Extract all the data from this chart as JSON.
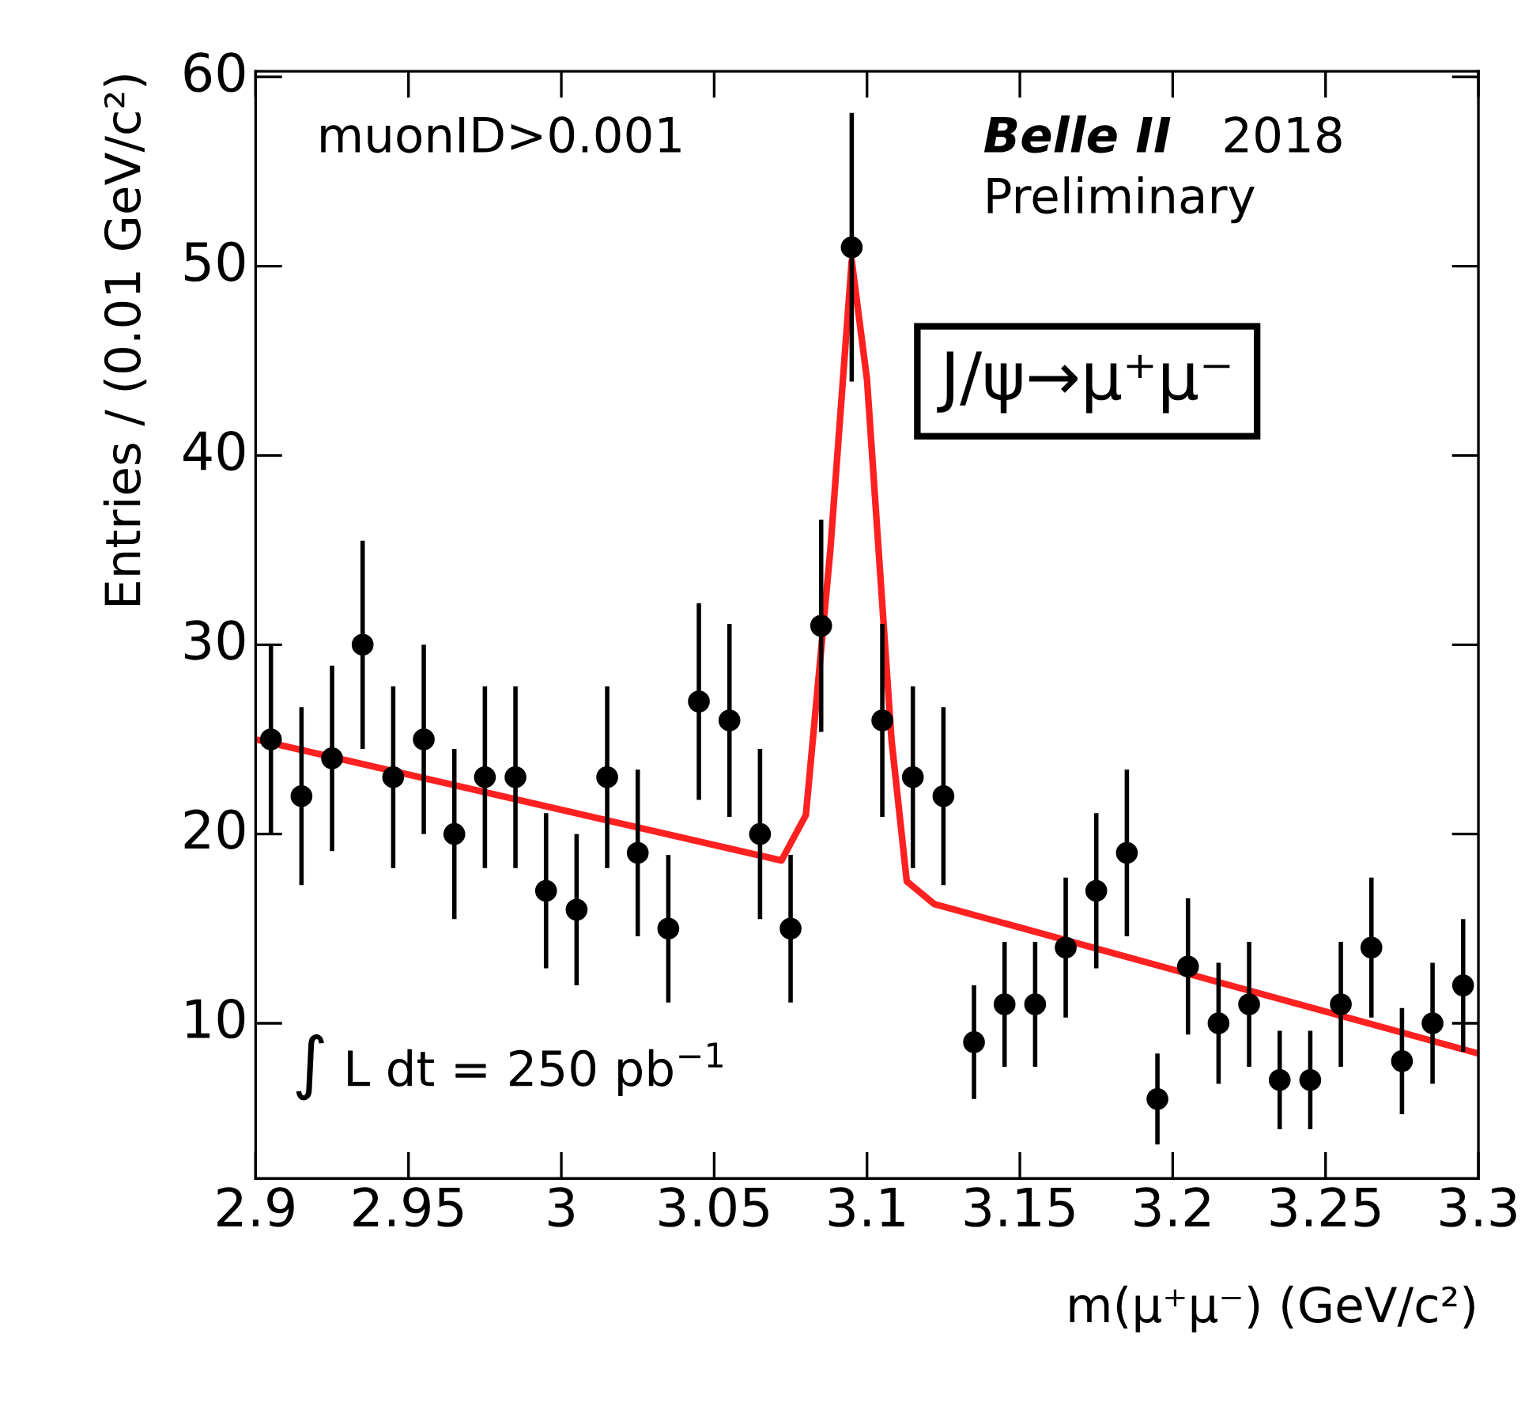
{
  "chart_data": {
    "type": "scatter",
    "xlabel": "m(μ⁺μ⁻) (GeV/c²)",
    "ylabel": "Entries / (0.01 GeV/c²)",
    "xlim": [
      2.9,
      3.3
    ],
    "ylim": [
      1.8,
      60.3
    ],
    "xticks": [
      2.9,
      2.95,
      3,
      3.05,
      3.1,
      3.15,
      3.2,
      3.25,
      3.3
    ],
    "yticks": [
      10,
      20,
      30,
      40,
      50,
      60
    ],
    "grid": false,
    "marker": "circle",
    "series": [
      {
        "color": "#000000",
        "x": [
          2.905,
          2.915,
          2.925,
          2.935,
          2.945,
          2.955,
          2.965,
          2.975,
          2.985,
          2.995,
          3.005,
          3.015,
          3.025,
          3.035,
          3.045,
          3.055,
          3.065,
          3.075,
          3.085,
          3.095,
          3.105,
          3.115,
          3.125,
          3.135,
          3.145,
          3.155,
          3.165,
          3.175,
          3.185,
          3.195,
          3.205,
          3.215,
          3.225,
          3.235,
          3.245,
          3.255,
          3.265,
          3.275,
          3.285,
          3.295
        ],
        "values": [
          25,
          22,
          24,
          30,
          23,
          25,
          20,
          23,
          23,
          17,
          16,
          23,
          19,
          15,
          27,
          26,
          20,
          15,
          31,
          51,
          26,
          23,
          22,
          9,
          11,
          11,
          14,
          17,
          19,
          6,
          13,
          10,
          11,
          7,
          7,
          11,
          14,
          8,
          10,
          12
        ],
        "errors": [
          5,
          4.7,
          4.9,
          5.5,
          4.8,
          5,
          4.5,
          4.8,
          4.8,
          4.1,
          4,
          4.8,
          4.4,
          3.9,
          5.2,
          5.1,
          4.5,
          3.9,
          5.6,
          7.1,
          5.1,
          4.8,
          4.7,
          3,
          3.3,
          3.3,
          3.7,
          4.1,
          4.4,
          2.4,
          3.6,
          3.2,
          3.3,
          2.6,
          2.6,
          3.3,
          3.7,
          2.8,
          3.2,
          3.5
        ]
      },
      {
        "type": "line",
        "color": "#ff2020",
        "marker": "none",
        "x": [
          2.9,
          3.072,
          3.08,
          3.088,
          3.095,
          3.1,
          3.108,
          3.113,
          3.122,
          3.3
        ],
        "values": [
          25,
          18.6,
          21,
          35,
          50.3,
          44,
          25,
          17.5,
          16.3,
          8.4
        ]
      }
    ],
    "annotations": [
      "muonID>0.001",
      "Belle II",
      "2018",
      "Preliminary",
      "J/ψ→μ⁺μ⁻",
      "∫ L dt = 250 pb$^{−1}$"
    ]
  }
}
